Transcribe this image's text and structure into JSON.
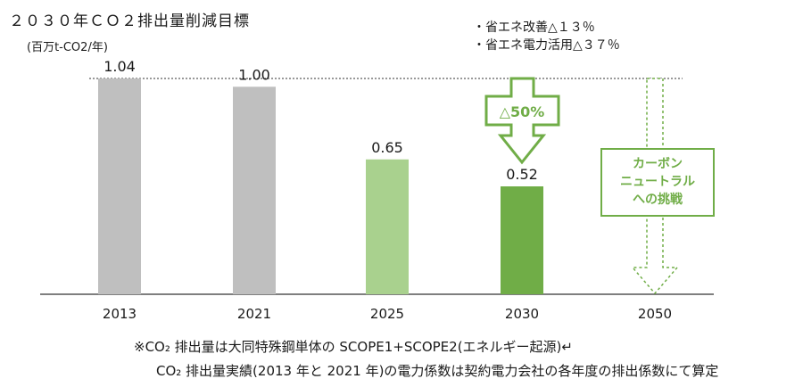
{
  "chart_data": {
    "type": "bar",
    "title": "２０３０年ＣＯ２排出量削減目標",
    "ylabel": "(百万t-CO2/年)",
    "xlabel": "",
    "categories": [
      "2013",
      "2021",
      "2025",
      "2030",
      "2050"
    ],
    "values": [
      1.04,
      1.0,
      0.65,
      0.52,
      null
    ],
    "value_labels": [
      "1.04",
      "1.00",
      "0.65",
      "0.52",
      ""
    ],
    "bar_colors": [
      "#bfbfbf",
      "#bfbfbf",
      "#a9d18e",
      "#70ad47",
      "none"
    ],
    "ylim": [
      0,
      1.04
    ],
    "grid": false,
    "reference_line": {
      "value": 1.04,
      "style": "dotted"
    },
    "annotations": {
      "reduction_arrow_label": "△50%",
      "carbon_neutral_lines": [
        "カーボン",
        "ニュートラル",
        "への挑戦"
      ]
    }
  },
  "notes": {
    "line1": "・省エネ改善△１３％",
    "line2": "・省エネ電力活用△３７％"
  },
  "footnotes": {
    "line1": "※CO₂ 排出量は大同特殊鋼単体の SCOPE1+SCOPE2(エネルギー起源)↵",
    "line2": "CO₂ 排出量実績(2013 年と 2021 年)の電力係数は契約電力会社の各年度の排出係数にて算定"
  },
  "colors": {
    "accent": "#70ad47",
    "light_green": "#a9d18e",
    "gray": "#bfbfbf"
  }
}
